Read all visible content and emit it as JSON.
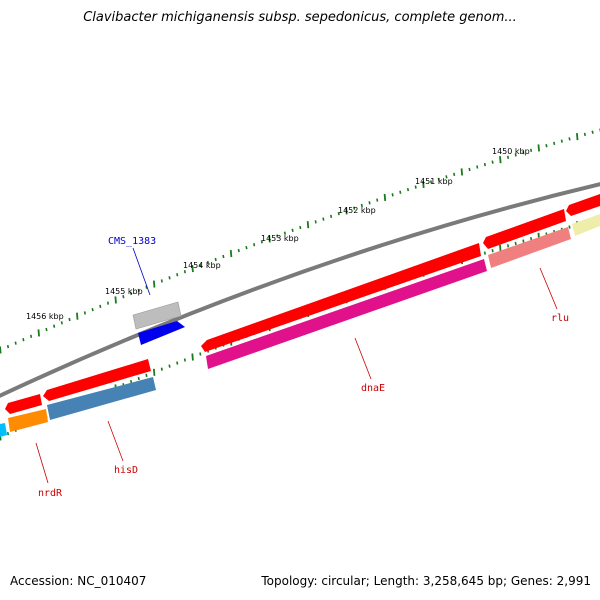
{
  "title": "Clavibacter michiganensis subsp. sepedonicus, complete genom...",
  "footer": {
    "accession": "Accession: NC_010407",
    "summary": "Topology: circular; Length: 3,258,645 bp; Genes: 2,991"
  },
  "ticks": [
    {
      "label": "1450 kbp"
    },
    {
      "label": "1451 kbp"
    },
    {
      "label": "1452 kbp"
    },
    {
      "label": "1453 kbp"
    },
    {
      "label": "1454 kbp"
    },
    {
      "label": "1455 kbp"
    },
    {
      "label": "1456 kbp"
    }
  ],
  "gene_labels": [
    {
      "name": "CMS_1383",
      "color": "#0000cc"
    },
    {
      "name": "rlu",
      "color": "#cc0000"
    },
    {
      "name": "dnaE",
      "color": "#cc0000"
    },
    {
      "name": "hisD",
      "color": "#cc0000"
    },
    {
      "name": "nrdR",
      "color": "#cc0000"
    }
  ],
  "colors": {
    "backbone": "#808080",
    "tick": "#1a7a1a",
    "cds": "#ff0000",
    "pseudo": "#c0c0c0",
    "blue_feature": "#0000ee",
    "dnaE": "#e0118a",
    "rlu": "#f08080",
    "yellow_feature": "#eeeeaa",
    "hisD": "#4682b4",
    "nrdR": "#ff8c00",
    "cyan_feature": "#00bfff"
  }
}
